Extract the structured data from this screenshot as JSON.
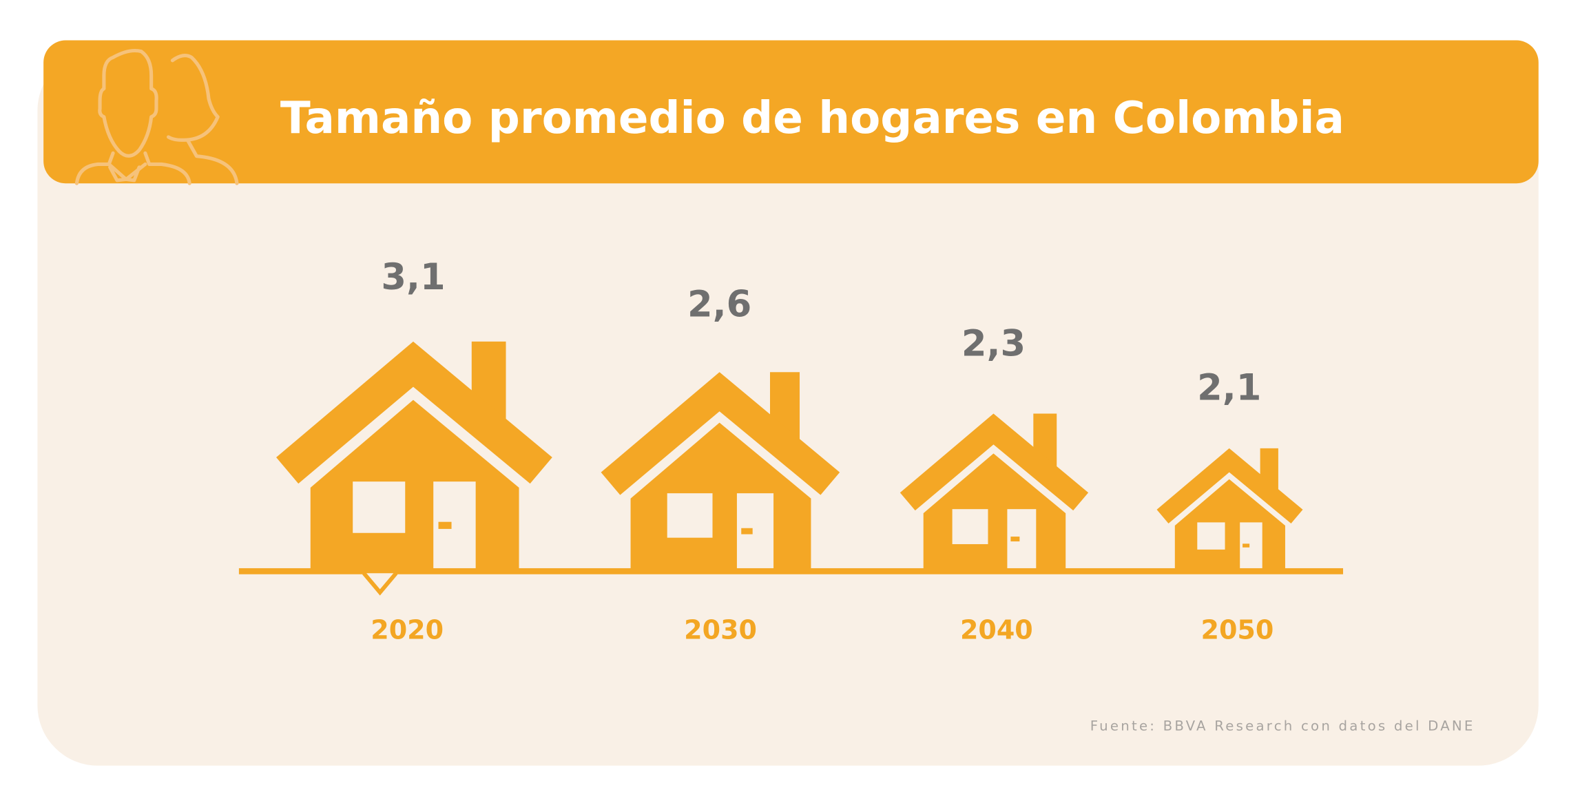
{
  "colors": {
    "accent": "#f4a725",
    "card_background": "#f9f0e6",
    "value_text": "#6f6f6f",
    "source_text": "#a8a4a0",
    "title_text": "#ffffff"
  },
  "header": {
    "title": "Tamaño promedio de hogares en Colombia",
    "icon": "people-outline-icon"
  },
  "chart_data": {
    "type": "pictogram",
    "title": "Tamaño promedio de hogares en Colombia",
    "categories": [
      "2020",
      "2030",
      "2040",
      "2050"
    ],
    "values": [
      3.1,
      2.6,
      2.3,
      2.1
    ],
    "value_labels": [
      "3,1",
      "2,6",
      "2,3",
      "2,1"
    ],
    "mark": "house-icon"
  },
  "footer": {
    "source": "Fuente: BBVA Research con datos del DANE"
  }
}
